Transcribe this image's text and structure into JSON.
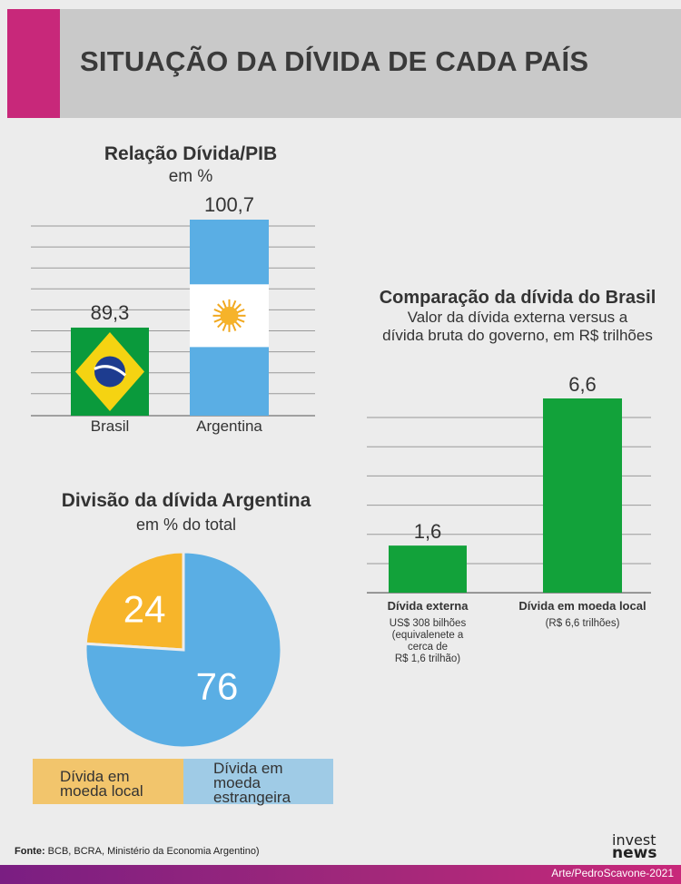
{
  "header": {
    "title": "SITUAÇÃO DA DÍVIDA DE CADA PAÍS"
  },
  "colors": {
    "accent": "#c8287a",
    "argentina_blue": "#5aaee4",
    "pie_local": "#f7b52a",
    "pie_foreign": "#5aaee4",
    "brazil_bar": "#12a23a"
  },
  "chart_data": [
    {
      "type": "bar",
      "title": "Relação Dívida/PIB",
      "subtitle": "em %",
      "categories": [
        "Brasil",
        "Argentina"
      ],
      "values": [
        89.3,
        100.7
      ],
      "value_labels": [
        "89,3",
        "100,7"
      ],
      "bar_style": [
        "brazil-flag",
        "argentina-flag"
      ],
      "ylim": [
        80,
        100.7
      ],
      "grid": true
    },
    {
      "type": "pie",
      "title": "Divisão da dívida Argentina",
      "subtitle": "em % do total",
      "labels": [
        "Dívida em moeda local",
        "Dívida em moeda estrangeira"
      ],
      "values": [
        24,
        76
      ],
      "value_labels": [
        "24",
        "76"
      ],
      "colors": [
        "#f7b52a",
        "#5aaee4"
      ],
      "legend": "bottom"
    },
    {
      "type": "bar",
      "title": "Comparação da dívida do Brasil",
      "subtitle_lines": [
        "Valor da dívida externa versus a",
        "dívida bruta do governo, em R$ trilhões"
      ],
      "categories": [
        "Dívida externa",
        "Dívida em moeda local"
      ],
      "category_notes": [
        [
          "US$ 308 bilhões",
          "(equivalenete a",
          "cerca de",
          "R$ 1,6 trilhão)"
        ],
        [
          "(R$ 6,6 trilhões)"
        ]
      ],
      "values": [
        1.6,
        6.6
      ],
      "value_labels": [
        "1,6",
        "6,6"
      ],
      "ylim": [
        0,
        6.6
      ],
      "grid": true,
      "color": "#12a23a"
    }
  ],
  "legend": {
    "local": [
      "Dívida em",
      "moeda local"
    ],
    "foreign": [
      "Dívida em",
      "moeda",
      "estrangeira"
    ]
  },
  "footer": {
    "source_label": "Fonte:",
    "source_text": " BCB, BCRA, Ministério da Economia Argentino)",
    "logo_line1": "invest",
    "logo_line2": "news",
    "credit": "Arte/PedroScavone-2021"
  }
}
